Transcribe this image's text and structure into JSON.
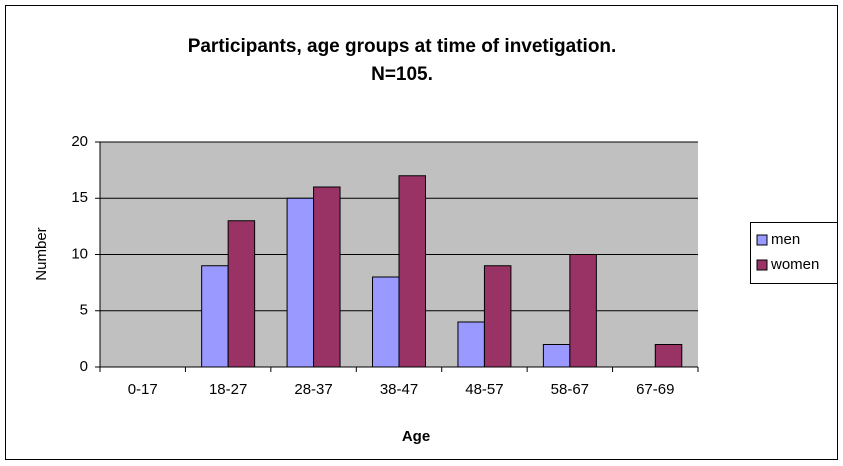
{
  "chart_data": {
    "type": "bar",
    "title": [
      "Participants, age groups at time of invetigation.",
      "N=105."
    ],
    "x_label": "Age",
    "y_label": "Number",
    "categories": [
      "0-17",
      "18-27",
      "28-37",
      "38-47",
      "48-57",
      "58-67",
      "67-69"
    ],
    "series": [
      {
        "name": "men",
        "color": "#9999ff",
        "values": [
          0,
          9,
          15,
          8,
          4,
          2,
          0
        ]
      },
      {
        "name": "women",
        "color": "#993366",
        "values": [
          0,
          13,
          16,
          17,
          9,
          10,
          2
        ]
      }
    ],
    "ylim": [
      0,
      20
    ],
    "yticks": [
      0,
      5,
      10,
      15,
      20
    ],
    "grid": true,
    "legend": "right"
  }
}
